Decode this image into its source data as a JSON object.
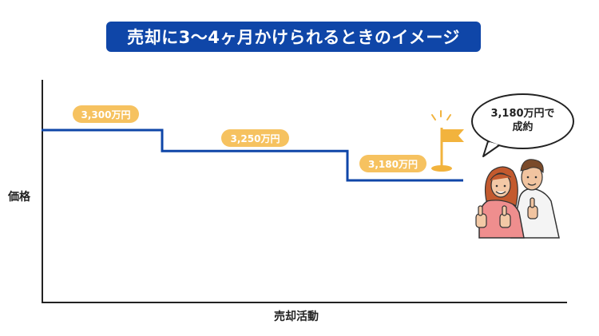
{
  "title": "売却に3〜4ヶ月かけられるときのイメージ",
  "ylabel": "価格",
  "xlabel": "売却活動",
  "bubble": {
    "line1": "3,180万円で",
    "line2": "成約"
  },
  "colors": {
    "banner": "#0f46a8",
    "line": "#0f46a8",
    "pill": "#f6c260",
    "flag": "#f2b33d"
  },
  "icons": [
    "goal-flag-icon",
    "thumbs-up-couple-illustration"
  ],
  "chart_data": {
    "type": "line",
    "step": true,
    "labels": [
      "3,300万円",
      "3,250万円",
      "3,180万円"
    ],
    "values": [
      3300,
      3250,
      3180
    ],
    "ylabel": "価格",
    "xlabel": "売却活動"
  }
}
